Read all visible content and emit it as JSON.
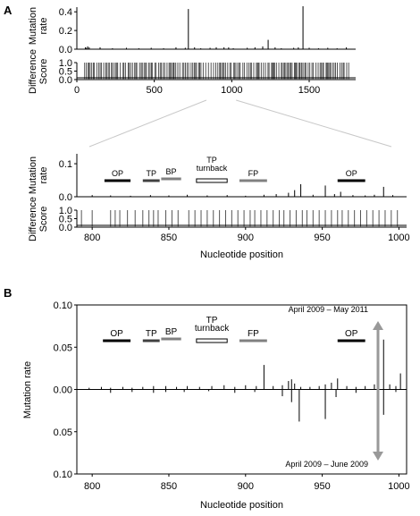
{
  "panel_labels": {
    "a": "A",
    "b": "B"
  },
  "chart_data": [
    {
      "type": "bar",
      "panel": "A",
      "ylabel": [
        "Mutation",
        "rate"
      ],
      "xlim": [
        0,
        1800
      ],
      "ylim": [
        0,
        0.45
      ],
      "yticks": [
        0.0,
        0.2,
        0.4
      ],
      "tick_labels_y": [
        "0.0",
        "0.2",
        "0.4"
      ],
      "x": [
        55,
        62,
        70,
        80,
        150,
        230,
        320,
        400,
        480,
        560,
        640,
        700,
        720,
        760,
        800,
        860,
        900,
        950,
        980,
        1010,
        1100,
        1150,
        1200,
        1235,
        1280,
        1320,
        1400,
        1430,
        1460,
        1500,
        1560,
        1620,
        1680,
        1740
      ],
      "values": [
        0.02,
        0.015,
        0.03,
        0.02,
        0.02,
        0.01,
        0.015,
        0.01,
        0.015,
        0.01,
        0.02,
        0.015,
        0.43,
        0.02,
        0.01,
        0.015,
        0.02,
        0.02,
        0.02,
        0.01,
        0.015,
        0.02,
        0.03,
        0.1,
        0.02,
        0.01,
        0.015,
        0.02,
        0.46,
        0.015,
        0.01,
        0.015,
        0.01,
        0.02
      ]
    },
    {
      "type": "bar",
      "panel": "A",
      "ylabel": [
        "Difference",
        "Score"
      ],
      "xlim": [
        0,
        1800
      ],
      "ylim": [
        0,
        1.0
      ],
      "yticks": [
        0.0,
        0.5,
        1.0
      ],
      "tick_labels_y": [
        "0.0",
        "0.5",
        "1.0"
      ],
      "xticks": [
        0,
        500,
        1000,
        1500
      ],
      "tick_labels_x": [
        "0",
        "500",
        "1000",
        "1500"
      ],
      "dense_range": [
        50,
        1760
      ],
      "value": 1.0
    },
    {
      "type": "bar",
      "panel": "A-zoom",
      "ylabel": [
        "Mutation",
        "rate"
      ],
      "xlim": [
        790,
        1005
      ],
      "ylim": [
        0,
        0.13
      ],
      "yticks": [
        0.0,
        0.1
      ],
      "tick_labels_y": [
        "0.0",
        "0.1"
      ],
      "x": [
        800,
        812,
        825,
        838,
        850,
        862,
        875,
        888,
        900,
        912,
        920,
        928,
        932,
        936,
        944,
        952,
        958,
        962,
        970,
        978,
        984,
        990,
        996
      ],
      "values": [
        0.005,
        0.004,
        0.003,
        0.005,
        0.004,
        0.006,
        0.004,
        0.005,
        0.003,
        0.006,
        0.008,
        0.012,
        0.02,
        0.038,
        0.006,
        0.034,
        0.008,
        0.015,
        0.005,
        0.004,
        0.006,
        0.03,
        0.005
      ],
      "regions": [
        {
          "label": "OP",
          "from": 808,
          "to": 825,
          "style": "black"
        },
        {
          "label": "TP",
          "from": 833,
          "to": 844,
          "style": "dark"
        },
        {
          "label": "BP",
          "from": 845,
          "to": 858,
          "style": "grey"
        },
        {
          "label_lines": [
            "TP",
            "turnback"
          ],
          "from": 868,
          "to": 888,
          "style": "open"
        },
        {
          "label": "FP",
          "from": 896,
          "to": 914,
          "style": "grey"
        },
        {
          "label": "OP",
          "from": 960,
          "to": 978,
          "style": "black"
        }
      ]
    },
    {
      "type": "bar",
      "panel": "A-zoom",
      "ylabel": [
        "Difference",
        "Score"
      ],
      "xlabel": "Nucleotide position",
      "xlim": [
        790,
        1005
      ],
      "ylim": [
        0,
        1.0
      ],
      "yticks": [
        0.0,
        0.5,
        1.0
      ],
      "tick_labels_y": [
        "0.0",
        "0.5",
        "1.0"
      ],
      "xticks": [
        800,
        850,
        900,
        950,
        1000
      ],
      "tick_labels_x": [
        "800",
        "850",
        "900",
        "950",
        "1000"
      ],
      "x": [
        793,
        800,
        812,
        815,
        818,
        823,
        828,
        833,
        837,
        840,
        843,
        848,
        852,
        856,
        863,
        867,
        871,
        875,
        879,
        883,
        887,
        891,
        895,
        899,
        903,
        906,
        910,
        914,
        918,
        922,
        925,
        929,
        933,
        937,
        940,
        944,
        948,
        952,
        956,
        960,
        963,
        967,
        971,
        975,
        979,
        983,
        987,
        991,
        995,
        999
      ],
      "value": 1.0
    },
    {
      "type": "bar",
      "panel": "B",
      "ylabel": "Mutation rate",
      "xlabel": "Nucleotide position",
      "xlim": [
        790,
        1005
      ],
      "ylim": [
        -0.1,
        0.1
      ],
      "yticks": [
        0.1,
        0.05,
        0.0,
        -0.05,
        -0.1
      ],
      "tick_labels_y": [
        "0.10",
        "0.05",
        "0.00",
        "0.05",
        "0.10"
      ],
      "xticks": [
        800,
        850,
        900,
        950,
        1000
      ],
      "tick_labels_x": [
        "800",
        "850",
        "900",
        "950",
        "1000"
      ],
      "period_top": "April 2009 – May 2011",
      "period_bottom": "April 2009 – June 2009",
      "series": [
        {
          "x": [
            798,
            806,
            812,
            820,
            826,
            833,
            840,
            848,
            855,
            862,
            870,
            878,
            886,
            893,
            900,
            907,
            912,
            918,
            924,
            928,
            930,
            932,
            936,
            942,
            948,
            952,
            956,
            960,
            966,
            972,
            978,
            984,
            990,
            994,
            998,
            1001
          ],
          "values": [
            0.002,
            0.003,
            0.002,
            0.003,
            0.002,
            0.003,
            0.004,
            0.004,
            0.003,
            0.004,
            0.003,
            0.004,
            0.005,
            0.003,
            0.005,
            0.004,
            0.029,
            0.004,
            0.005,
            0.01,
            0.012,
            0.007,
            0.003,
            0.003,
            0.004,
            0.006,
            0.008,
            0.013,
            0.004,
            0.003,
            0.004,
            0.006,
            0.059,
            0.006,
            0.004,
            0.019
          ]
        },
        {
          "x": [
            812,
            826,
            840,
            848,
            860,
            876,
            893,
            906,
            924,
            930,
            935,
            952,
            959,
            972,
            990,
            998
          ],
          "values": [
            -0.004,
            -0.003,
            -0.004,
            -0.003,
            -0.003,
            -0.002,
            -0.004,
            -0.003,
            -0.008,
            -0.015,
            -0.038,
            -0.035,
            -0.009,
            -0.004,
            -0.03,
            -0.003
          ]
        }
      ],
      "regions": [
        {
          "label": "OP",
          "from": 807,
          "to": 825,
          "style": "black"
        },
        {
          "label": "TP",
          "from": 833,
          "to": 844,
          "style": "dark"
        },
        {
          "label": "BP",
          "from": 845,
          "to": 858,
          "style": "grey"
        },
        {
          "label_lines": [
            "TP",
            "turnback"
          ],
          "from": 868,
          "to": 888,
          "style": "open"
        },
        {
          "label": "FP",
          "from": 896,
          "to": 914,
          "style": "grey"
        },
        {
          "label": "OP",
          "from": 960,
          "to": 978,
          "style": "black"
        }
      ]
    }
  ],
  "colors": {
    "black": "#000000",
    "dark": "#404040",
    "grey": "#808080",
    "open": "#ffffff",
    "arrow": "#999999",
    "guide": "#c8c8c8"
  }
}
